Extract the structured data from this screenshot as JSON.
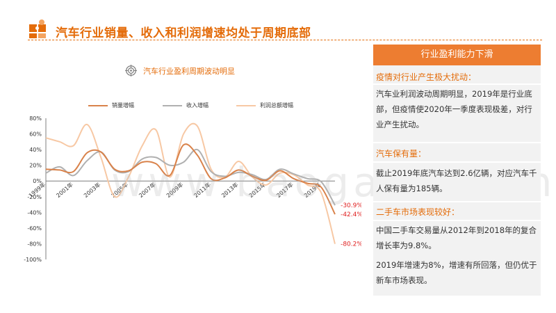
{
  "header": {
    "title": "汽车行业销量、收入和利润增速均处于周期底部"
  },
  "chart": {
    "title": "汽车行业盈利周期波动明显"
  },
  "panel": {
    "title": "行业盈利能力下滑",
    "sections": [
      {
        "heading": "疫情对行业产生极大扰动：",
        "text": "汽车业利润波动周期明显，2019年是行业底部，但疫情使2020年一季度表现极差，对行业产生扰动。"
      },
      {
        "heading": "汽车保有量：",
        "text": "截止2019年底汽车达到2.6亿辆，对应汽车千人保有量为185辆。"
      },
      {
        "heading": "二手车市场表现较好：",
        "text": "中国二手车交易量从2012年到2018年的复合增长率为9.8%。",
        "text2": "2019年增速为8%，增速有所回落，但仍优于新车市场表现。"
      }
    ]
  },
  "watermark": "www.baogao8.com",
  "colors": {
    "accent": "#e46c0a",
    "sales": "#d9824a",
    "revenue": "#b0b0b0",
    "profit": "#f7c8a4"
  },
  "chart_data": {
    "type": "line",
    "x": [
      "1999年",
      "2000年",
      "2001年",
      "2002年",
      "2003年",
      "2004年",
      "2005年",
      "2006年",
      "2007年",
      "2008年",
      "2009年",
      "2010年",
      "2011年",
      "2012年",
      "2013年",
      "2014年",
      "2015年",
      "2016年",
      "2017年",
      "2018年",
      "2019年",
      "2020Q1"
    ],
    "x_tick_labels": [
      "1999年",
      "2001年",
      "2003年",
      "2005年",
      "2007年",
      "2009年",
      "2011年",
      "2013年",
      "2015年",
      "2017年",
      "2019年"
    ],
    "y_ticks": [
      "80%",
      "60%",
      "40%",
      "20%",
      "0%",
      "-20%",
      "-40%",
      "-60%",
      "-80%",
      "-100%"
    ],
    "ylim": [
      -100,
      80
    ],
    "series": [
      {
        "name": "销量增幅",
        "values": [
          15,
          14,
          12,
          36,
          37,
          15,
          13,
          24,
          22,
          7,
          46,
          33,
          3,
          4,
          14,
          6,
          1,
          13,
          3,
          -3,
          -8,
          -42.4
        ],
        "end_label": "-42.4%"
      },
      {
        "name": "收入增幅",
        "values": [
          10,
          18,
          7,
          26,
          37,
          14,
          12,
          28,
          30,
          20,
          24,
          40,
          12,
          6,
          11,
          8,
          2,
          15,
          9,
          3,
          -1,
          -30.9
        ],
        "end_label": "-30.9%"
      },
      {
        "name": "利润总额增幅",
        "values": [
          55,
          50,
          45,
          72,
          30,
          -20,
          5,
          45,
          65,
          5,
          60,
          70,
          15,
          5,
          25,
          5,
          -5,
          10,
          8,
          -5,
          -15,
          -80.2
        ],
        "end_label": "-80.2%"
      }
    ],
    "end_labels": [
      "-30.9%",
      "-42.4%",
      "-80.2%"
    ]
  }
}
